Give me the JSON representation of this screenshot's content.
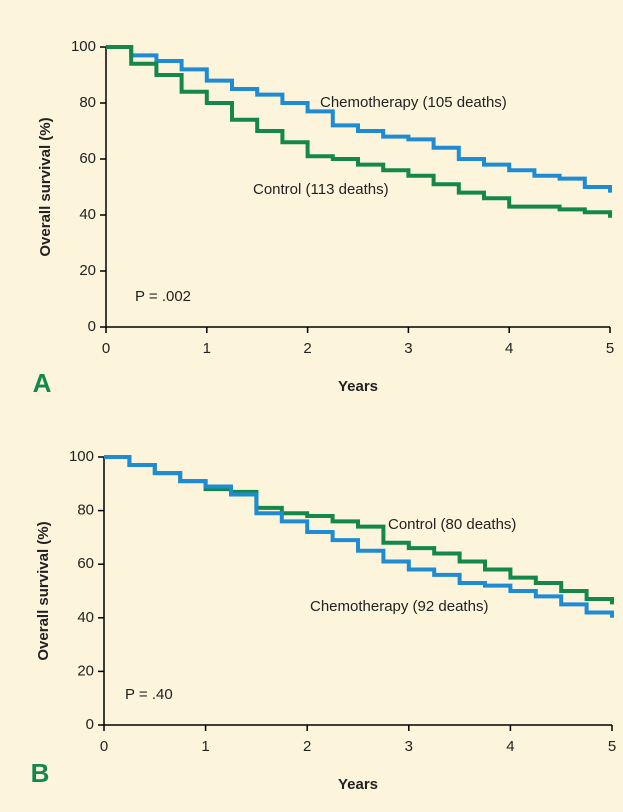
{
  "chart_data": [
    {
      "type": "line",
      "step": true,
      "panel": "A",
      "ylabel": "Overall survival (%)",
      "xlabel": "Years",
      "annotation": "P = .002",
      "x": [
        0,
        0.25,
        0.5,
        0.75,
        1,
        1.25,
        1.5,
        1.75,
        2,
        2.25,
        2.5,
        2.75,
        3,
        3.25,
        3.5,
        3.75,
        4,
        4.25,
        4.5,
        4.75,
        5
      ],
      "series": [
        {
          "name": "Chemotherapy (105 deaths)",
          "color": "#1f8bd3",
          "values": [
            100,
            97,
            95,
            92,
            88,
            85,
            83,
            80,
            77,
            72,
            70,
            68,
            67,
            64,
            60,
            58,
            56,
            54,
            53,
            50,
            48
          ]
        },
        {
          "name": "Control (113 deaths)",
          "color": "#13884a",
          "values": [
            100,
            94,
            90,
            84,
            80,
            74,
            70,
            66,
            61,
            60,
            58,
            56,
            54,
            51,
            48,
            46,
            43,
            43,
            42,
            41,
            39
          ]
        }
      ],
      "xlim": [
        0,
        5
      ],
      "xticks": [
        0,
        1,
        2,
        3,
        4,
        5
      ],
      "ylim": [
        0,
        100
      ],
      "yticks": [
        0,
        20,
        40,
        60,
        80,
        100
      ]
    },
    {
      "type": "line",
      "step": true,
      "panel": "B",
      "ylabel": "Overall survival (%)",
      "xlabel": "Years",
      "annotation": "P = .40",
      "x": [
        0,
        0.25,
        0.5,
        0.75,
        1,
        1.25,
        1.5,
        1.75,
        2,
        2.25,
        2.5,
        2.75,
        3,
        3.25,
        3.5,
        3.75,
        4,
        4.25,
        4.5,
        4.75,
        5
      ],
      "series": [
        {
          "name": "Control (80 deaths)",
          "color": "#13884a",
          "values": [
            100,
            97,
            94,
            91,
            88,
            87,
            81,
            79,
            78,
            76,
            74,
            68,
            66,
            64,
            61,
            58,
            55,
            53,
            50,
            47,
            45
          ]
        },
        {
          "name": "Chemotherapy (92 deaths)",
          "color": "#1f8bd3",
          "values": [
            100,
            97,
            94,
            91,
            89,
            86,
            79,
            76,
            72,
            69,
            65,
            61,
            58,
            56,
            53,
            52,
            50,
            48,
            45,
            42,
            40
          ]
        }
      ],
      "xlim": [
        0,
        5
      ],
      "xticks": [
        0,
        1,
        2,
        3,
        4,
        5
      ],
      "ylim": [
        0,
        100
      ],
      "yticks": [
        0,
        20,
        40,
        60,
        80,
        100
      ]
    }
  ]
}
